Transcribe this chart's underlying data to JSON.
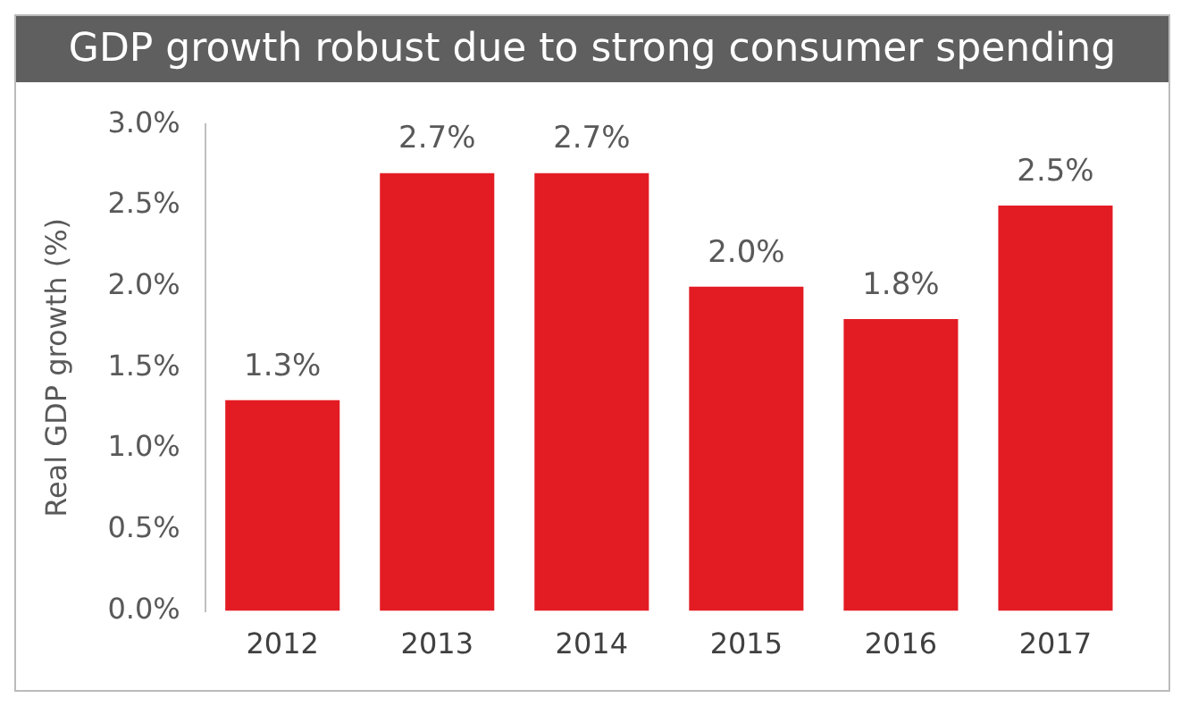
{
  "chart_data": {
    "type": "bar",
    "title": "GDP growth robust due to strong consumer spending",
    "ylabel": "Real GDP growth (%)",
    "categories": [
      "2012",
      "2013",
      "2014",
      "2015",
      "2016",
      "2017"
    ],
    "values": [
      1.3,
      2.7,
      2.7,
      2.0,
      1.8,
      2.5
    ],
    "color": "#e31b23",
    "value_labels": [
      "1.3%",
      "2.7%",
      "2.7%",
      "2.0%",
      "1.8%",
      "2.5%"
    ],
    "ylim": [
      0,
      3
    ],
    "yticks": [
      {
        "value": 0,
        "label": "0.0%"
      },
      {
        "value": 0.5,
        "label": "0.5%"
      },
      {
        "value": 1,
        "label": "1.0%"
      },
      {
        "value": 1.5,
        "label": "1.5%"
      },
      {
        "value": 2,
        "label": "2.0%"
      },
      {
        "value": 2.5,
        "label": "2.5%"
      },
      {
        "value": 3,
        "label": "3.0%"
      }
    ],
    "grid": false,
    "legend": false
  }
}
